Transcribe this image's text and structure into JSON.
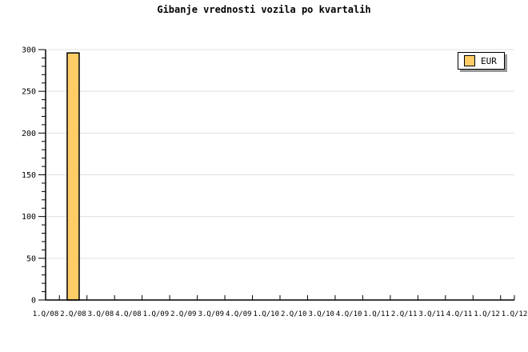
{
  "title": "Gibanje vrednosti vozila po kvartalih",
  "legend": {
    "label": "EUR",
    "swatch_color": "#FFCC66",
    "position": "top-right"
  },
  "chart_data": {
    "type": "bar",
    "title": "Gibanje vrednosti vozila po kvartalih",
    "categories": [
      "1.Q/08",
      "2.Q/08",
      "3.Q/08",
      "4.Q/08",
      "1.Q/09",
      "2.Q/09",
      "3.Q/09",
      "4.Q/09",
      "1.Q/10",
      "2.Q/10",
      "3.Q/10",
      "4.Q/10",
      "1.Q/11",
      "2.Q/11",
      "3.Q/11",
      "4.Q/11",
      "1.Q/12",
      "1.Q/12"
    ],
    "series": [
      {
        "name": "EUR",
        "color": "#FFCC66",
        "border_color": "#000000",
        "values": [
          null,
          296,
          null,
          null,
          null,
          null,
          null,
          null,
          null,
          null,
          null,
          null,
          null,
          null,
          null,
          null,
          null,
          null
        ]
      }
    ],
    "xlabel": "",
    "ylabel": "",
    "ylim": [
      0,
      300
    ],
    "y_major_step": 50,
    "y_minor_step": 10,
    "y_tick_labels": [
      "0",
      "50",
      "100",
      "150",
      "200",
      "250",
      "300"
    ],
    "grid": "horizontal-major",
    "grid_color": "#E0E0E0",
    "axis_color": "#000000",
    "legend_position": "top-right"
  }
}
